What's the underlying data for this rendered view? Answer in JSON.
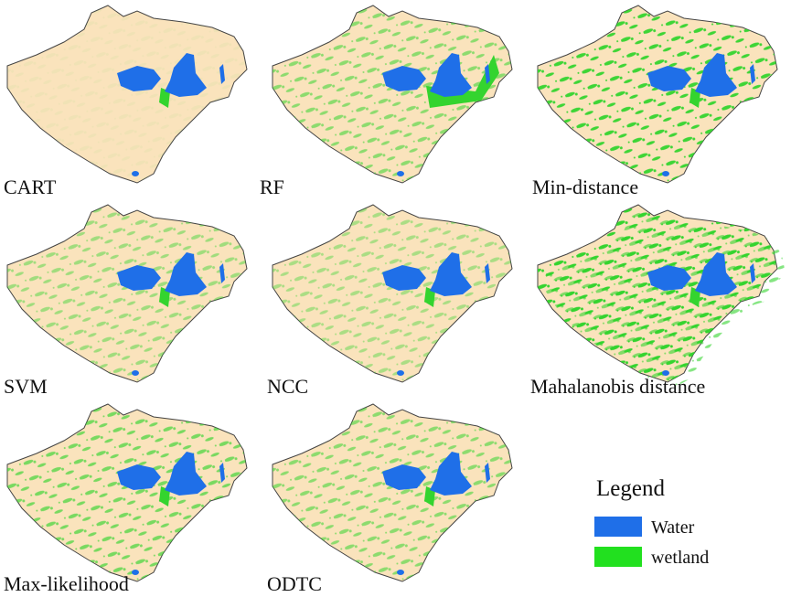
{
  "panels": [
    {
      "label": "CART"
    },
    {
      "label": "RF"
    },
    {
      "label": "Min-distance"
    },
    {
      "label": "SVM"
    },
    {
      "label": "NCC"
    },
    {
      "label": "Mahalanobis distance"
    },
    {
      "label": "Max-likelihood"
    },
    {
      "label": "ODTC"
    }
  ],
  "legend": {
    "title": "Legend",
    "items": [
      {
        "label": "Water"
      },
      {
        "label": "wetland"
      }
    ]
  }
}
